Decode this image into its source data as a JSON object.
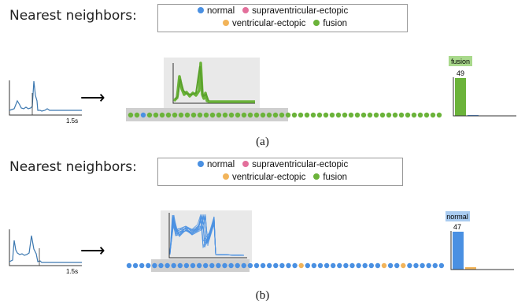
{
  "legend": [
    {
      "name": "normal",
      "color": "#4a90e2"
    },
    {
      "name": "supraventricular-ectopic",
      "color": "#e36f9b"
    },
    {
      "name": "ventricular-ectopic",
      "color": "#f2b45a"
    },
    {
      "name": "fusion",
      "color": "#6bb33a"
    }
  ],
  "panels": [
    {
      "title": "Nearest neighbors:",
      "query_time_label": "1.5s",
      "arrow": "⟶",
      "badge_label": "fusion",
      "badge_color": "#a9d98c",
      "top_count": "49",
      "hist_values": [
        49,
        1,
        0,
        0
      ],
      "hist_colors": [
        "#6bb33a",
        "#4a90e2",
        "#f2b45a",
        "#e36f9b"
      ],
      "neighbor_classes": [
        "fusion",
        "fusion",
        "normal",
        "fusion",
        "fusion",
        "fusion",
        "fusion",
        "fusion",
        "fusion",
        "fusion",
        "fusion",
        "fusion",
        "fusion",
        "fusion",
        "fusion",
        "fusion",
        "fusion",
        "fusion",
        "fusion",
        "fusion",
        "fusion",
        "fusion",
        "fusion",
        "fusion",
        "fusion",
        "fusion",
        "fusion",
        "fusion",
        "fusion",
        "fusion",
        "fusion",
        "fusion",
        "fusion",
        "fusion",
        "fusion",
        "fusion",
        "fusion",
        "fusion",
        "fusion",
        "fusion",
        "fusion",
        "fusion",
        "fusion",
        "fusion",
        "fusion",
        "fusion",
        "fusion",
        "fusion",
        "fusion",
        "fusion"
      ],
      "caption": "(a)"
    },
    {
      "title": "Nearest neighbors:",
      "query_time_label": "1.5s",
      "arrow": "⟶",
      "badge_label": "normal",
      "badge_color": "#a9cbf0",
      "top_count": "47",
      "hist_values": [
        47,
        3,
        0,
        0
      ],
      "hist_colors": [
        "#4a90e2",
        "#f2b45a",
        "#e36f9b",
        "#6bb33a"
      ],
      "neighbor_classes": [
        "normal",
        "normal",
        "normal",
        "normal",
        "normal",
        "normal",
        "normal",
        "normal",
        "normal",
        "normal",
        "normal",
        "normal",
        "normal",
        "normal",
        "normal",
        "normal",
        "normal",
        "normal",
        "normal",
        "normal",
        "normal",
        "normal",
        "normal",
        "normal",
        "normal",
        "normal",
        "normal",
        "ventricular-ectopic",
        "normal",
        "normal",
        "normal",
        "normal",
        "normal",
        "normal",
        "normal",
        "normal",
        "normal",
        "normal",
        "normal",
        "normal",
        "ventricular-ectopic",
        "normal",
        "normal",
        "ventricular-ectopic",
        "normal",
        "normal",
        "normal",
        "normal",
        "normal",
        "normal"
      ],
      "caption": "(b)"
    }
  ]
}
